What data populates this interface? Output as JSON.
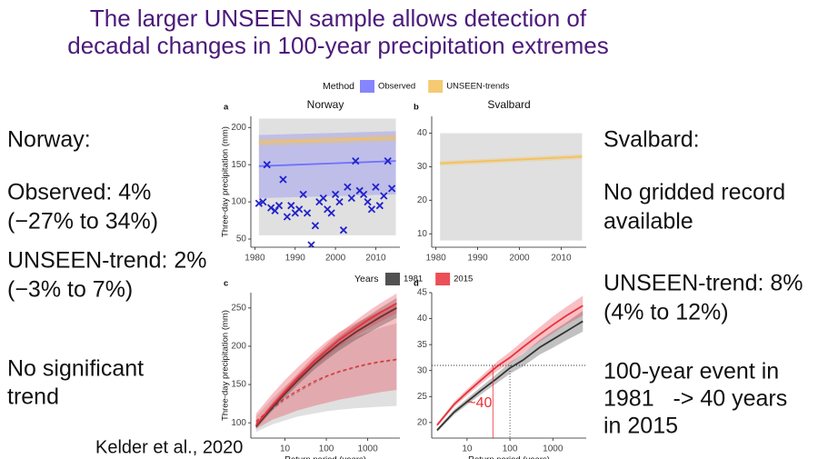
{
  "title": [
    "The larger UNSEEN sample allows detection of",
    "decadal changes in 100-year precipitation extremes"
  ],
  "left_text": [
    "Norway:",
    "Observed: 4%",
    "(−27% to 34%)",
    "UNSEEN-trend: 2%",
    "(−3% to 7%)",
    "No significant",
    "trend"
  ],
  "right_text": [
    "Svalbard:",
    "No gridded record",
    "available",
    "UNSEEN-trend: 8%",
    "(4% to 12%)",
    "100-year event in",
    "1981   -> 40 years",
    "in 2015"
  ],
  "citation": "Kelder et al., 2020",
  "legend_top": {
    "title": "Method",
    "items": [
      {
        "name": "Observed",
        "color": "#7070ff"
      },
      {
        "name": "UNSEEN-trends",
        "color": "#f5c15a"
      }
    ]
  },
  "legend_bottom": {
    "title": "Years",
    "items": [
      {
        "name": "1981",
        "color": "#333333"
      },
      {
        "name": "2015",
        "color": "#e8303a"
      }
    ]
  },
  "chart_data": [
    {
      "type": "scatter",
      "panel": "a",
      "title": "Norway",
      "ylabel": "Three-day precipitation (mm)",
      "x": [
        1981,
        2015
      ],
      "xlim": [
        1979,
        2016
      ],
      "xticks": [
        1980,
        1990,
        2000,
        2010
      ],
      "ylim": [
        39,
        215
      ],
      "yticks": [
        50,
        100,
        150,
        200
      ],
      "series": [
        {
          "color": "#999999",
          "lower": [
            55,
            55
          ],
          "upper": [
            212,
            212
          ]
        },
        {
          "color": "#7070ff",
          "values": [
            148,
            155
          ],
          "lower": [
            105,
            110
          ],
          "upper": [
            190,
            195
          ]
        },
        {
          "color": "#f5c15a",
          "values": [
            180,
            186
          ],
          "lower": [
            175,
            181
          ],
          "upper": [
            185,
            191
          ]
        },
        {
          "color": "#2222cc",
          "marker": "x",
          "x": [
            1981,
            1982,
            1983,
            1984,
            1985,
            1986,
            1987,
            1988,
            1989,
            1990,
            1991,
            1992,
            1993,
            1994,
            1995,
            1996,
            1997,
            1998,
            1999,
            2000,
            2001,
            2002,
            2003,
            2004,
            2005,
            2006,
            2007,
            2008,
            2009,
            2010,
            2011,
            2012,
            2013,
            2014
          ],
          "values": [
            98,
            100,
            150,
            92,
            88,
            95,
            130,
            80,
            95,
            85,
            90,
            110,
            85,
            42,
            68,
            100,
            105,
            90,
            85,
            110,
            100,
            62,
            120,
            105,
            155,
            115,
            110,
            100,
            90,
            120,
            95,
            108,
            155,
            118
          ]
        }
      ]
    },
    {
      "type": "scatter",
      "panel": "b",
      "title": "Svalbard",
      "x": [
        1981,
        2015
      ],
      "xlim": [
        1979,
        2016
      ],
      "xticks": [
        1980,
        1990,
        2000,
        2010
      ],
      "ylim": [
        6,
        45
      ],
      "yticks": [
        10,
        20,
        30,
        40
      ],
      "series": [
        {
          "color": "#999999",
          "lower": [
            8,
            8
          ],
          "upper": [
            40,
            40
          ]
        },
        {
          "color": "#f5c15a",
          "values": [
            31,
            33
          ],
          "lower": [
            30.3,
            32.3
          ],
          "upper": [
            31.7,
            33.7
          ]
        }
      ]
    },
    {
      "type": "line",
      "panel": "c",
      "ylabel": "Three-day precipitation (mm)",
      "xlabel": "Return period (years)",
      "log_x": true,
      "x": [
        2,
        5,
        10,
        20,
        50,
        100,
        200,
        500,
        1000,
        2000,
        5000
      ],
      "xlim": [
        1.5,
        6000
      ],
      "xticks": [
        10,
        100,
        1000
      ],
      "ylim": [
        80,
        270
      ],
      "yticks": [
        100,
        150,
        200,
        250
      ],
      "series": [
        {
          "color": "#999999",
          "dash": true,
          "values": [
            100,
            118,
            130,
            140,
            152,
            160,
            166,
            172,
            176,
            179,
            182
          ],
          "lower": [
            88,
            98,
            103,
            108,
            112,
            115,
            117,
            119,
            120,
            121,
            122
          ],
          "upper": [
            108,
            132,
            148,
            162,
            180,
            192,
            202,
            212,
            218,
            224,
            230
          ]
        },
        {
          "color": "#e8303a",
          "dash": true,
          "values": [
            102,
            120,
            132,
            142,
            154,
            161,
            167,
            173,
            177,
            180,
            183
          ],
          "lower": [
            92,
            104,
            110,
            116,
            122,
            126,
            130,
            134,
            137,
            140,
            143
          ],
          "upper": [
            112,
            138,
            156,
            172,
            192,
            206,
            218,
            230,
            238,
            246,
            254
          ]
        },
        {
          "color": "#333333",
          "values": [
            95,
            120,
            138,
            155,
            176,
            190,
            203,
            218,
            228,
            238,
            250
          ],
          "lower": [
            92,
            116,
            133,
            149,
            169,
            182,
            194,
            208,
            217,
            226,
            237
          ],
          "upper": [
            98,
            124,
            143,
            161,
            183,
            198,
            212,
            228,
            239,
            250,
            263
          ]
        },
        {
          "color": "#e8303a",
          "values": [
            97,
            123,
            141,
            158,
            180,
            194,
            208,
            223,
            234,
            244,
            256
          ],
          "lower": [
            94,
            119,
            136,
            152,
            173,
            186,
            199,
            213,
            223,
            232,
            243
          ],
          "upper": [
            100,
            127,
            146,
            164,
            187,
            202,
            217,
            233,
            245,
            256,
            269
          ]
        }
      ]
    },
    {
      "type": "line",
      "panel": "d",
      "xlabel": "Return period (years)",
      "log_x": true,
      "x": [
        2,
        5,
        10,
        20,
        50,
        100,
        200,
        500,
        1000,
        2000,
        5000
      ],
      "xlim": [
        1.5,
        6000
      ],
      "xticks": [
        10,
        100,
        1000
      ],
      "ylim": [
        17,
        45
      ],
      "yticks": [
        20,
        25,
        30,
        35,
        40,
        45
      ],
      "hline": 31,
      "vlines": [
        40,
        100
      ],
      "annotation": "~40",
      "annotation_color": "#e8303a",
      "series": [
        {
          "color": "#333333",
          "values": [
            18.5,
            22,
            24,
            26,
            28.5,
            30.5,
            32,
            34.5,
            36,
            37.5,
            39.5
          ],
          "lower": [
            18.2,
            21.5,
            23.4,
            25.3,
            27.6,
            29.4,
            30.8,
            33.1,
            34.4,
            35.8,
            37.5
          ],
          "upper": [
            18.8,
            22.5,
            24.6,
            26.7,
            29.4,
            31.6,
            33.2,
            35.9,
            37.6,
            39.2,
            41.5
          ]
        },
        {
          "color": "#e8303a",
          "values": [
            19.5,
            23.5,
            25.8,
            28,
            30.8,
            32.5,
            34.5,
            37,
            38.8,
            40.5,
            42.5
          ],
          "lower": [
            19.2,
            23,
            25.2,
            27.3,
            29.9,
            31.4,
            33.3,
            35.6,
            37.2,
            38.8,
            40.6
          ],
          "upper": [
            19.8,
            24,
            26.4,
            28.7,
            31.7,
            33.6,
            35.7,
            38.4,
            40.4,
            42.2,
            44.4
          ]
        }
      ]
    }
  ]
}
